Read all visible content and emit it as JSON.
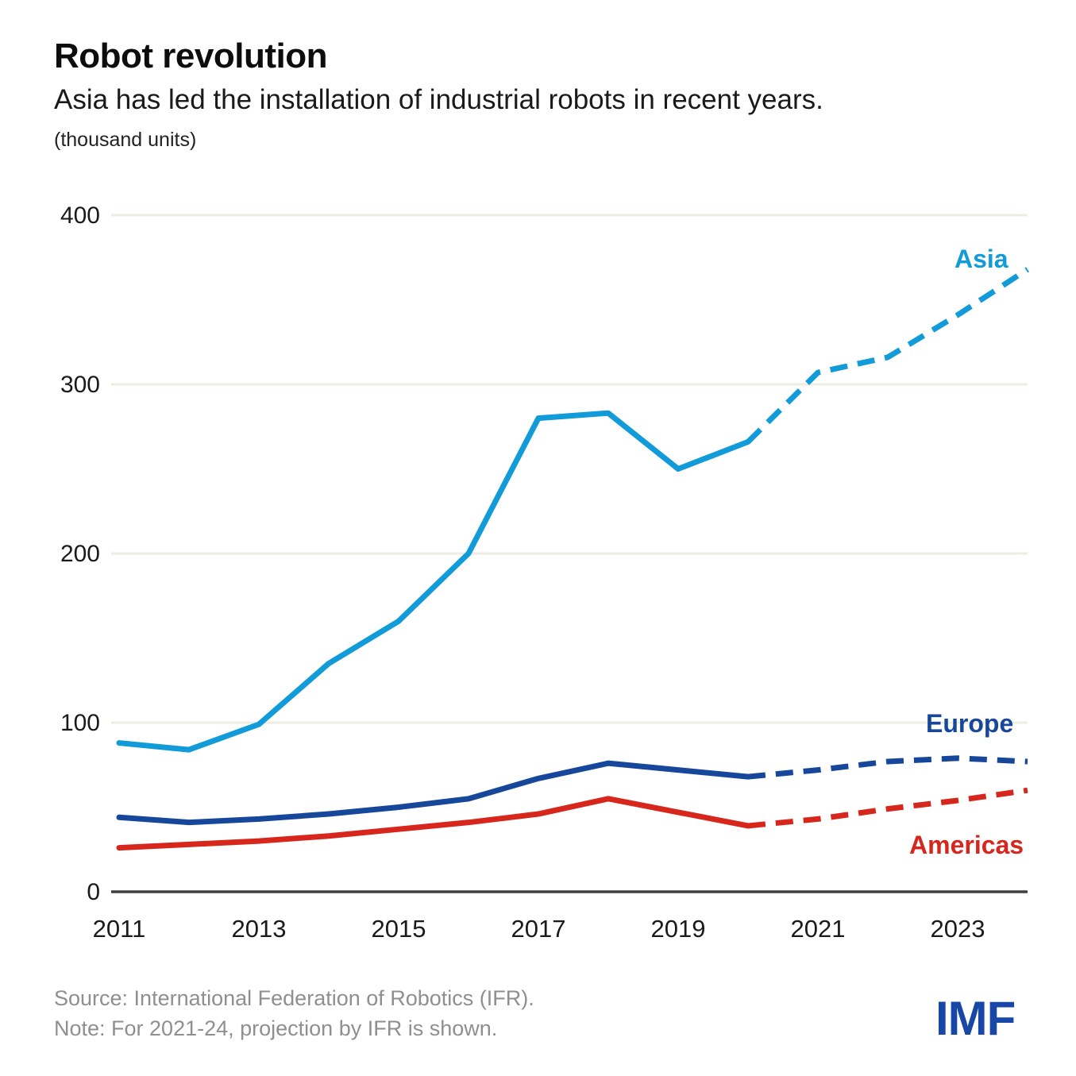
{
  "header": {
    "title": "Robot revolution",
    "subtitle": "Asia has led the installation of industrial robots in recent years.",
    "units_label": "(thousand units)"
  },
  "chart_data": {
    "type": "line",
    "title": "Robot revolution",
    "subtitle": "Asia has led the installation of industrial robots in recent years.",
    "ylabel": "(thousand units)",
    "xlabel": "",
    "x": [
      2011,
      2012,
      2013,
      2014,
      2015,
      2016,
      2017,
      2018,
      2019,
      2020,
      2021,
      2022,
      2023,
      2024
    ],
    "series": [
      {
        "name": "Asia",
        "color": "#119BD8",
        "values": [
          88,
          84,
          99,
          135,
          160,
          200,
          280,
          283,
          250,
          266,
          307,
          316,
          341,
          368
        ]
      },
      {
        "name": "Europe",
        "color": "#17479A",
        "values": [
          44,
          41,
          43,
          46,
          50,
          55,
          67,
          76,
          72,
          68,
          72,
          77,
          79,
          77
        ]
      },
      {
        "name": "Americas",
        "color": "#D7271D",
        "values": [
          26,
          28,
          30,
          33,
          37,
          41,
          46,
          55,
          47,
          39,
          43,
          49,
          54,
          60
        ]
      }
    ],
    "projection_from_x": 2020,
    "projection_style": "dashed",
    "ylim": [
      0,
      400
    ],
    "y_ticks": [
      0,
      100,
      200,
      300,
      400
    ],
    "x_ticks": [
      2011,
      2013,
      2015,
      2017,
      2019,
      2021,
      2023
    ],
    "grid": "horizontal",
    "legend_position": "end-of-line-labels"
  },
  "colors": {
    "gridline": "#EFECE1",
    "axis_line": "#3F3F3F",
    "tick_text": "#1A1A1A",
    "footer_text": "#8F8F8F",
    "logo_blue": "#1847A8"
  },
  "footer": {
    "source_line": "Source: International Federation of Robotics (IFR).",
    "note_line": "Note: For 2021-24, projection by IFR is shown.",
    "logo_text": "IMF"
  }
}
